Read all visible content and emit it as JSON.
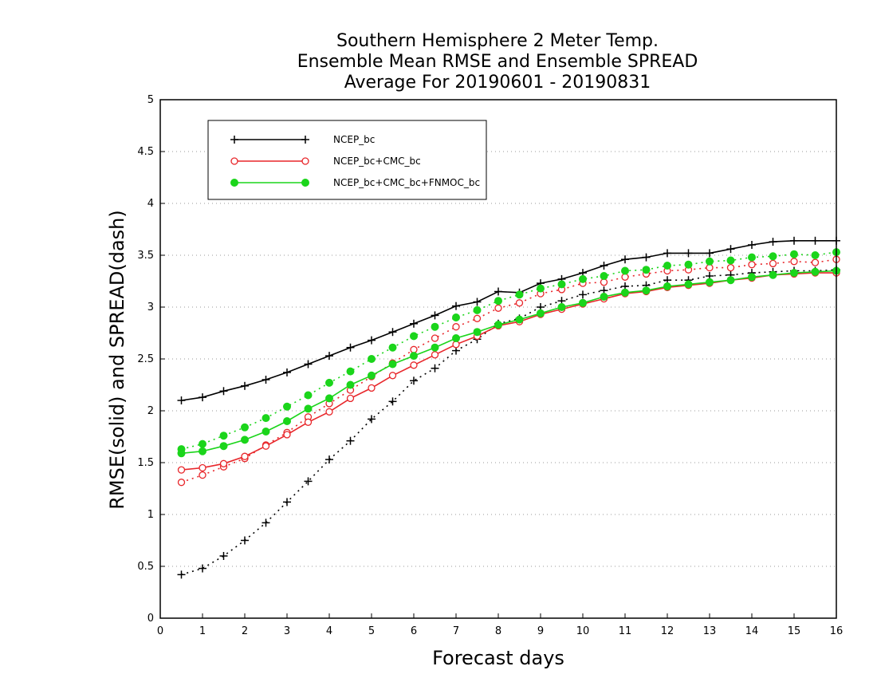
{
  "chart_data": {
    "type": "line",
    "title_lines": [
      "Southern Hemisphere 2 Meter Temp.",
      "Ensemble Mean RMSE and Ensemble SPREAD",
      "Average For 20190601 - 20190831"
    ],
    "xlabel": "Forecast days",
    "ylabel": "RMSE(solid) and SPREAD(dash)",
    "xlim": [
      0,
      16
    ],
    "ylim": [
      0,
      5
    ],
    "xticks": [
      0,
      1,
      2,
      3,
      4,
      5,
      6,
      7,
      8,
      9,
      10,
      11,
      12,
      13,
      14,
      15,
      16
    ],
    "yticks": [
      0,
      0.5,
      1,
      1.5,
      2,
      2.5,
      3,
      3.5,
      4,
      4.5,
      5
    ],
    "ytick_labels": [
      "0",
      "0.5",
      "1",
      "1.5",
      "2",
      "2.5",
      "3",
      "3.5",
      "4",
      "4.5",
      "5"
    ],
    "grid": "horizontal dotted",
    "legend_position": "top-left",
    "x": [
      0.5,
      1,
      1.5,
      2,
      2.5,
      3,
      3.5,
      4,
      4.5,
      5,
      5.5,
      6,
      6.5,
      7,
      7.5,
      8,
      8.5,
      9,
      9.5,
      10,
      10.5,
      11,
      11.5,
      12,
      12.5,
      13,
      13.5,
      14,
      14.5,
      15,
      15.5,
      16
    ],
    "series": [
      {
        "name": "NCEP_bc",
        "color": "#000000",
        "marker": "plus",
        "rmse": [
          2.1,
          2.13,
          2.19,
          2.24,
          2.3,
          2.37,
          2.45,
          2.53,
          2.61,
          2.68,
          2.76,
          2.84,
          2.92,
          3.01,
          3.05,
          3.15,
          3.14,
          3.23,
          3.27,
          3.33,
          3.4,
          3.46,
          3.48,
          3.52,
          3.52,
          3.52,
          3.56,
          3.6,
          3.63,
          3.64,
          3.64,
          3.64
        ],
        "spread": [
          0.42,
          0.48,
          0.6,
          0.75,
          0.92,
          1.12,
          1.32,
          1.53,
          1.71,
          1.92,
          2.09,
          2.29,
          2.41,
          2.58,
          2.69,
          2.84,
          2.89,
          3.0,
          3.06,
          3.12,
          3.16,
          3.2,
          3.21,
          3.26,
          3.26,
          3.3,
          3.31,
          3.33,
          3.34,
          3.35,
          3.35,
          3.36
        ]
      },
      {
        "name": "NCEP_bc+CMC_bc",
        "color": "#e8262a",
        "marker": "open-circle",
        "rmse": [
          1.43,
          1.45,
          1.49,
          1.56,
          1.66,
          1.77,
          1.89,
          1.99,
          2.12,
          2.22,
          2.34,
          2.44,
          2.54,
          2.64,
          2.72,
          2.82,
          2.86,
          2.93,
          2.98,
          3.03,
          3.08,
          3.13,
          3.15,
          3.19,
          3.21,
          3.23,
          3.26,
          3.28,
          3.31,
          3.32,
          3.33,
          3.33
        ],
        "spread": [
          1.31,
          1.38,
          1.46,
          1.54,
          1.67,
          1.79,
          1.94,
          2.07,
          2.2,
          2.33,
          2.46,
          2.59,
          2.7,
          2.81,
          2.89,
          2.99,
          3.04,
          3.13,
          3.17,
          3.23,
          3.24,
          3.29,
          3.32,
          3.35,
          3.36,
          3.38,
          3.38,
          3.41,
          3.42,
          3.44,
          3.43,
          3.46
        ]
      },
      {
        "name": "NCEP_bc+CMC_bc+FNMOC_bc",
        "color": "#1bd51b",
        "marker": "filled-circle",
        "rmse": [
          1.59,
          1.61,
          1.66,
          1.72,
          1.8,
          1.9,
          2.02,
          2.12,
          2.25,
          2.34,
          2.45,
          2.53,
          2.61,
          2.7,
          2.76,
          2.83,
          2.88,
          2.94,
          3.0,
          3.04,
          3.1,
          3.14,
          3.16,
          3.2,
          3.22,
          3.24,
          3.26,
          3.29,
          3.31,
          3.33,
          3.34,
          3.35
        ],
        "spread": [
          1.63,
          1.68,
          1.76,
          1.84,
          1.93,
          2.04,
          2.15,
          2.27,
          2.38,
          2.5,
          2.61,
          2.72,
          2.81,
          2.9,
          2.97,
          3.06,
          3.12,
          3.18,
          3.22,
          3.27,
          3.3,
          3.35,
          3.36,
          3.4,
          3.41,
          3.44,
          3.45,
          3.48,
          3.49,
          3.51,
          3.5,
          3.53
        ]
      }
    ]
  }
}
